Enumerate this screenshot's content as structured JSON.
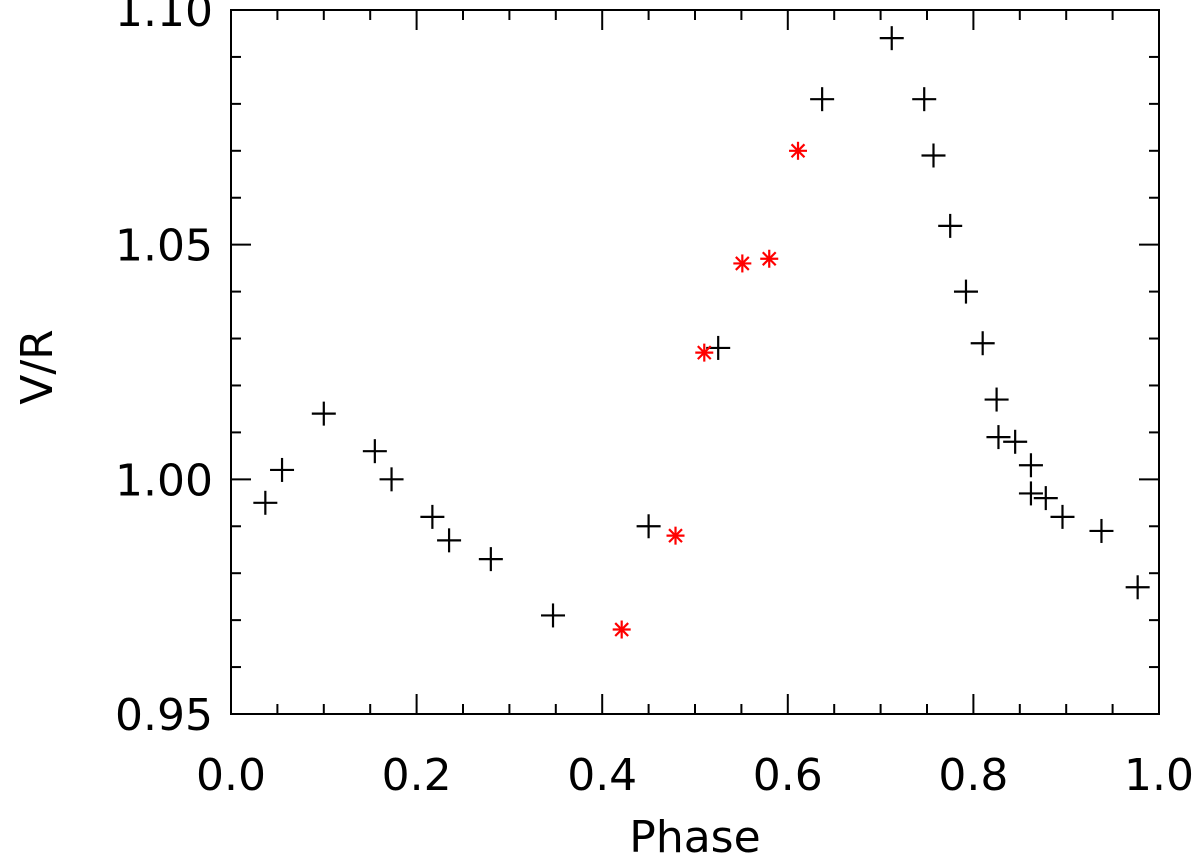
{
  "chart_data": {
    "type": "scatter",
    "title": "",
    "xlabel": "Phase",
    "ylabel": "V/R",
    "xlim": [
      0.0,
      1.0
    ],
    "ylim": [
      0.95,
      1.1
    ],
    "grid": false,
    "x_major_ticks": [
      0.0,
      0.2,
      0.4,
      0.6,
      0.8,
      1.0
    ],
    "x_tick_labels": [
      "0.0",
      "0.2",
      "0.4",
      "0.6",
      "0.8",
      "1.0"
    ],
    "x_minor_step": 0.05,
    "y_major_ticks": [
      0.95,
      1.0,
      1.05,
      1.1
    ],
    "y_tick_labels": [
      "0.95",
      "1.00",
      "1.05",
      "1.10"
    ],
    "y_minor_step": 0.01,
    "series": [
      {
        "name": "plus",
        "marker": "plus",
        "color": "#000000",
        "points": [
          [
            0.037,
            0.995
          ],
          [
            0.055,
            1.002
          ],
          [
            0.1,
            1.014
          ],
          [
            0.155,
            1.006
          ],
          [
            0.173,
            1.0
          ],
          [
            0.217,
            0.992
          ],
          [
            0.235,
            0.987
          ],
          [
            0.28,
            0.983
          ],
          [
            0.347,
            0.971
          ],
          [
            0.45,
            0.99
          ],
          [
            0.525,
            1.028
          ],
          [
            0.637,
            1.081
          ],
          [
            0.712,
            1.094
          ],
          [
            0.747,
            1.081
          ],
          [
            0.757,
            1.069
          ],
          [
            0.775,
            1.054
          ],
          [
            0.792,
            1.04
          ],
          [
            0.81,
            1.029
          ],
          [
            0.825,
            1.017
          ],
          [
            0.827,
            1.009
          ],
          [
            0.845,
            1.008
          ],
          [
            0.862,
            1.003
          ],
          [
            0.862,
            0.997
          ],
          [
            0.878,
            0.996
          ],
          [
            0.896,
            0.992
          ],
          [
            0.938,
            0.989
          ],
          [
            0.977,
            0.977
          ]
        ]
      },
      {
        "name": "asterisk",
        "marker": "asterisk",
        "color": "#ff0000",
        "points": [
          [
            0.421,
            0.968
          ],
          [
            0.479,
            0.988
          ],
          [
            0.51,
            1.027
          ],
          [
            0.551,
            1.046
          ],
          [
            0.58,
            1.047
          ],
          [
            0.611,
            1.07
          ]
        ]
      }
    ]
  }
}
